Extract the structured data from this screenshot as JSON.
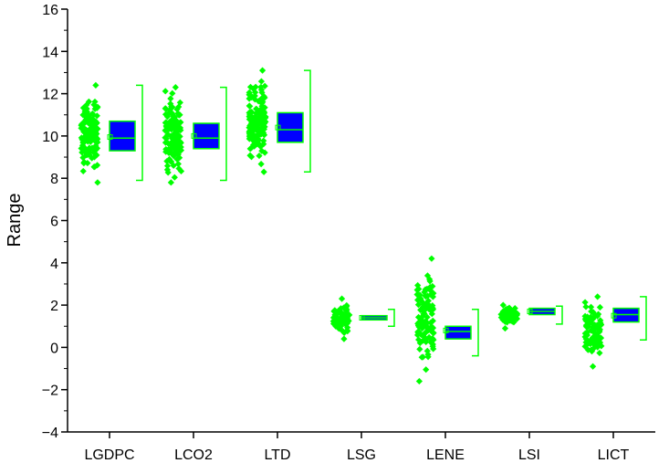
{
  "chart_data": {
    "type": "box-with-jitter",
    "title": "",
    "xlabel": "",
    "ylabel": "Range",
    "ylim": [
      -4,
      16
    ],
    "y_ticks": [
      -4,
      -2,
      0,
      2,
      4,
      6,
      8,
      10,
      12,
      14,
      16
    ],
    "y_tick_labels": [
      "−4",
      "−2",
      "0",
      "2",
      "4",
      "6",
      "8",
      "10",
      "12",
      "14",
      "16"
    ],
    "categories": [
      "LGDPC",
      "LCO2",
      "LTD",
      "LSG",
      "LENE",
      "LSI",
      "LICT"
    ],
    "point_color": "#00ff00",
    "box_fill": "#0000ff",
    "box_stroke": "#00ff00",
    "grid": false,
    "legend": "none",
    "boxes": [
      {
        "name": "LGDPC",
        "min": 7.9,
        "q1": 9.3,
        "median": 9.9,
        "mean": 9.95,
        "q3": 10.7,
        "max": 12.4
      },
      {
        "name": "LCO2",
        "min": 7.9,
        "q1": 9.4,
        "median": 9.9,
        "mean": 10.0,
        "q3": 10.6,
        "max": 12.3
      },
      {
        "name": "LTD",
        "min": 8.3,
        "q1": 9.7,
        "median": 10.3,
        "mean": 10.4,
        "q3": 11.1,
        "max": 13.1
      },
      {
        "name": "LSG",
        "min": 1.0,
        "q1": 1.3,
        "median": 1.4,
        "mean": 1.4,
        "q3": 1.5,
        "max": 1.8
      },
      {
        "name": "LENE",
        "min": -0.4,
        "q1": 0.4,
        "median": 0.75,
        "mean": 0.8,
        "q3": 1.0,
        "max": 1.8
      },
      {
        "name": "LSI",
        "min": 1.1,
        "q1": 1.55,
        "median": 1.7,
        "mean": 1.7,
        "q3": 1.85,
        "max": 1.95
      },
      {
        "name": "LICT",
        "min": 0.35,
        "q1": 1.2,
        "median": 1.55,
        "mean": 1.5,
        "q3": 1.85,
        "max": 2.4
      }
    ],
    "scatter_ranges": [
      {
        "name": "LGDPC",
        "low": 7.8,
        "high": 12.4
      },
      {
        "name": "LCO2",
        "low": 7.8,
        "high": 12.3
      },
      {
        "name": "LTD",
        "low": 8.3,
        "high": 13.1
      },
      {
        "name": "LSG",
        "low": 0.4,
        "high": 2.3
      },
      {
        "name": "LENE",
        "low": -1.6,
        "high": 4.2
      },
      {
        "name": "LSI",
        "low": 0.9,
        "high": 2.0
      },
      {
        "name": "LICT",
        "low": -0.9,
        "high": 2.4
      }
    ]
  }
}
